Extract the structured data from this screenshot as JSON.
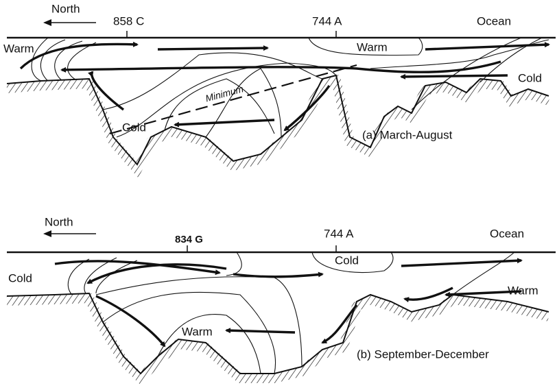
{
  "panels": [
    {
      "north": "North",
      "stations": [
        "858 C",
        "744 A"
      ],
      "ocean": "Ocean",
      "labels": [
        "Warm",
        "Warm",
        "Cold",
        "Minimum",
        "Cold"
      ],
      "caption": "(a) March-August"
    },
    {
      "north": "North",
      "stations": [
        "834 G",
        "744 A"
      ],
      "ocean": "Ocean",
      "labels": [
        "Cold",
        "Cold",
        "Warm",
        "Warm"
      ],
      "caption": "(b) September-December"
    }
  ]
}
